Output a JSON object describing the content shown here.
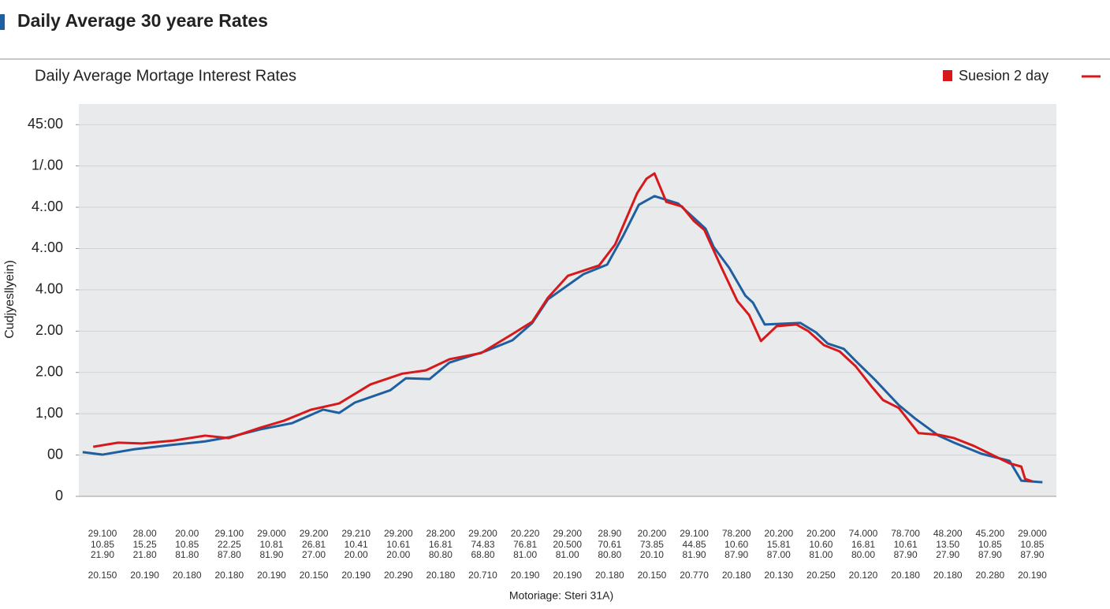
{
  "chart_data": {
    "type": "line",
    "title": "Daily Average 30 yeare Rates",
    "subtitle": "Daily Average Mortage Interest Rates",
    "y_label": "Cudjyesllyein)",
    "x_label": "Motoriage: Steri 31A)",
    "legend": "top-right",
    "grid": true,
    "categories": [
      "29.100",
      "28.00",
      "20.00",
      "29.100",
      "29.000",
      "29.200",
      "29.210",
      "29.200",
      "28.200",
      "29.200",
      "20.220",
      "29.200",
      "28.90",
      "20.200",
      "29.100",
      "78.200",
      "20.200",
      "20.200",
      "74.000",
      "78.700",
      "48.200",
      "45.200",
      "29.000"
    ],
    "x_tick_sublabels": [
      [
        "10.85",
        "15.25",
        "10.85",
        "22.25",
        "10.81",
        "26.81",
        "10.41",
        "10.61",
        "16.81",
        "74.83",
        "76.81",
        "20.500",
        "70.61",
        "73.85",
        "44.85",
        "10.60",
        "15.81",
        "10.60",
        "16.81",
        "10.61",
        "13.50",
        "10.85",
        "10.85"
      ],
      [
        "21.90",
        "21.80",
        "81.80",
        "87.80",
        "81.90",
        "27.00",
        "20.00",
        "20.00",
        "80.80",
        "68.80",
        "81.00",
        "81.00",
        "80.80",
        "20.10",
        "81.90",
        "87.90",
        "87.00",
        "81.00",
        "80.00",
        "87.90",
        "27.90",
        "87.90",
        "87.90"
      ],
      [
        "20.150",
        "20.190",
        "20.180",
        "20.180",
        "20.190",
        "20.150",
        "20.190",
        "20.290",
        "20.180",
        "20.710",
        "20.190",
        "20.190",
        "20.180",
        "20.150",
        "20.770",
        "20.180",
        "20.130",
        "20.250",
        "20.120",
        "20.180",
        "20.180",
        "20.280",
        "20.190"
      ]
    ],
    "xlim": [
      -0.56,
      22.57
    ],
    "ylim": [
      0,
      9.5
    ],
    "yticks": [
      0,
      {
        "value": 1,
        "label": "00"
      },
      {
        "value": 2,
        "label": "1,00"
      },
      {
        "value": 3,
        "label": "2.00"
      },
      {
        "value": 4,
        "label": "2.00"
      },
      {
        "value": 5,
        "label": "4.00"
      },
      {
        "value": 6,
        "label": "4.:00"
      },
      {
        "value": 7,
        "label": "4.:00"
      },
      {
        "value": 8,
        "label": "1/.00"
      },
      {
        "value": 9,
        "label": "45:00"
      }
    ],
    "series": [
      {
        "name": "Suesion 2 day",
        "color": "#d7191c",
        "x": [
          -0.22,
          0.37,
          0.93,
          1.68,
          2.43,
          2.99,
          3.73,
          4.29,
          4.94,
          5.6,
          6.34,
          7.09,
          7.65,
          8.21,
          8.96,
          9.7,
          10.17,
          10.54,
          11.01,
          11.75,
          12.13,
          12.65,
          12.87,
          13.06,
          13.34,
          13.71,
          13.99,
          14.24,
          14.65,
          15.02,
          15.3,
          15.58,
          15.95,
          16.42,
          16.7,
          17.07,
          17.44,
          17.82,
          18.19,
          18.47,
          18.84,
          19.31,
          19.78,
          20.15,
          20.62,
          21.08,
          21.46,
          21.74,
          21.83,
          22.01
        ],
        "values": [
          1.2,
          1.3,
          1.28,
          1.35,
          1.47,
          1.41,
          1.66,
          1.83,
          2.1,
          2.25,
          2.71,
          2.97,
          3.05,
          3.32,
          3.47,
          3.93,
          4.23,
          4.81,
          5.34,
          5.59,
          6.1,
          7.34,
          7.69,
          7.82,
          7.13,
          7.02,
          6.67,
          6.45,
          5.53,
          4.73,
          4.39,
          3.76,
          4.12,
          4.16,
          4.0,
          3.66,
          3.51,
          3.15,
          2.67,
          2.33,
          2.14,
          1.53,
          1.49,
          1.41,
          1.22,
          0.99,
          0.8,
          0.72,
          0.42,
          0.36
        ]
      },
      {
        "color": "#1f5fa0",
        "x": [
          -0.47,
          0,
          0.75,
          1.59,
          2.43,
          2.99,
          3.73,
          4.48,
          5.22,
          5.6,
          5.97,
          6.81,
          7.18,
          7.74,
          8.21,
          9.05,
          9.7,
          10.17,
          10.54,
          11.38,
          11.94,
          12.31,
          12.69,
          13.06,
          13.62,
          14.27,
          14.46,
          14.83,
          15.21,
          15.39,
          15.67,
          16.51,
          16.88,
          17.16,
          17.54,
          17.82,
          18.28,
          18.84,
          19.22,
          19.78,
          20.15,
          20.8,
          21.46,
          21.74,
          22.24
        ],
        "values": [
          1.07,
          1.01,
          1.14,
          1.24,
          1.33,
          1.43,
          1.62,
          1.77,
          2.1,
          2.02,
          2.27,
          2.57,
          2.86,
          2.84,
          3.24,
          3.51,
          3.78,
          4.2,
          4.77,
          5.38,
          5.61,
          6.29,
          7.06,
          7.27,
          7.09,
          6.48,
          6.04,
          5.53,
          4.86,
          4.69,
          4.16,
          4.2,
          3.97,
          3.7,
          3.57,
          3.28,
          2.82,
          2.21,
          1.89,
          1.47,
          1.3,
          1.03,
          0.86,
          0.38,
          0.34
        ]
      }
    ]
  }
}
